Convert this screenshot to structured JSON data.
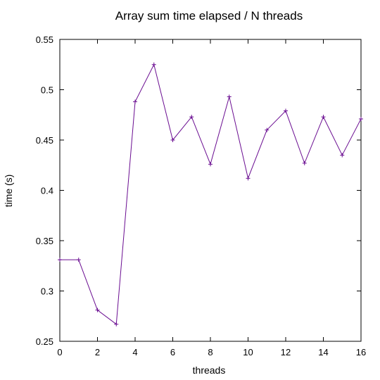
{
  "chart_data": {
    "type": "line",
    "title": "Array sum time elapsed / N threads",
    "xlabel": "threads",
    "ylabel": "time (s)",
    "xlim": [
      0,
      16
    ],
    "ylim": [
      0.25,
      0.55
    ],
    "x_ticks": [
      "0",
      "2",
      "4",
      "6",
      "8",
      "10",
      "12",
      "14",
      "16"
    ],
    "y_ticks": [
      "0.25",
      "0.3",
      "0.35",
      "0.4",
      "0.45",
      "0.5",
      "0.55"
    ],
    "grid": false,
    "legend": "none",
    "colors": {
      "line": "#6a0d91",
      "marker": "#6a0d91",
      "axis": "#000000"
    },
    "series": [
      {
        "x": [
          0,
          1,
          2,
          3,
          4,
          5,
          6,
          7,
          8,
          9,
          10,
          11,
          12,
          13,
          14,
          15,
          16
        ],
        "values": [
          0.331,
          0.331,
          0.281,
          0.267,
          0.488,
          0.525,
          0.45,
          0.473,
          0.426,
          0.493,
          0.412,
          0.46,
          0.479,
          0.427,
          0.473,
          0.435,
          0.471
        ]
      }
    ]
  }
}
